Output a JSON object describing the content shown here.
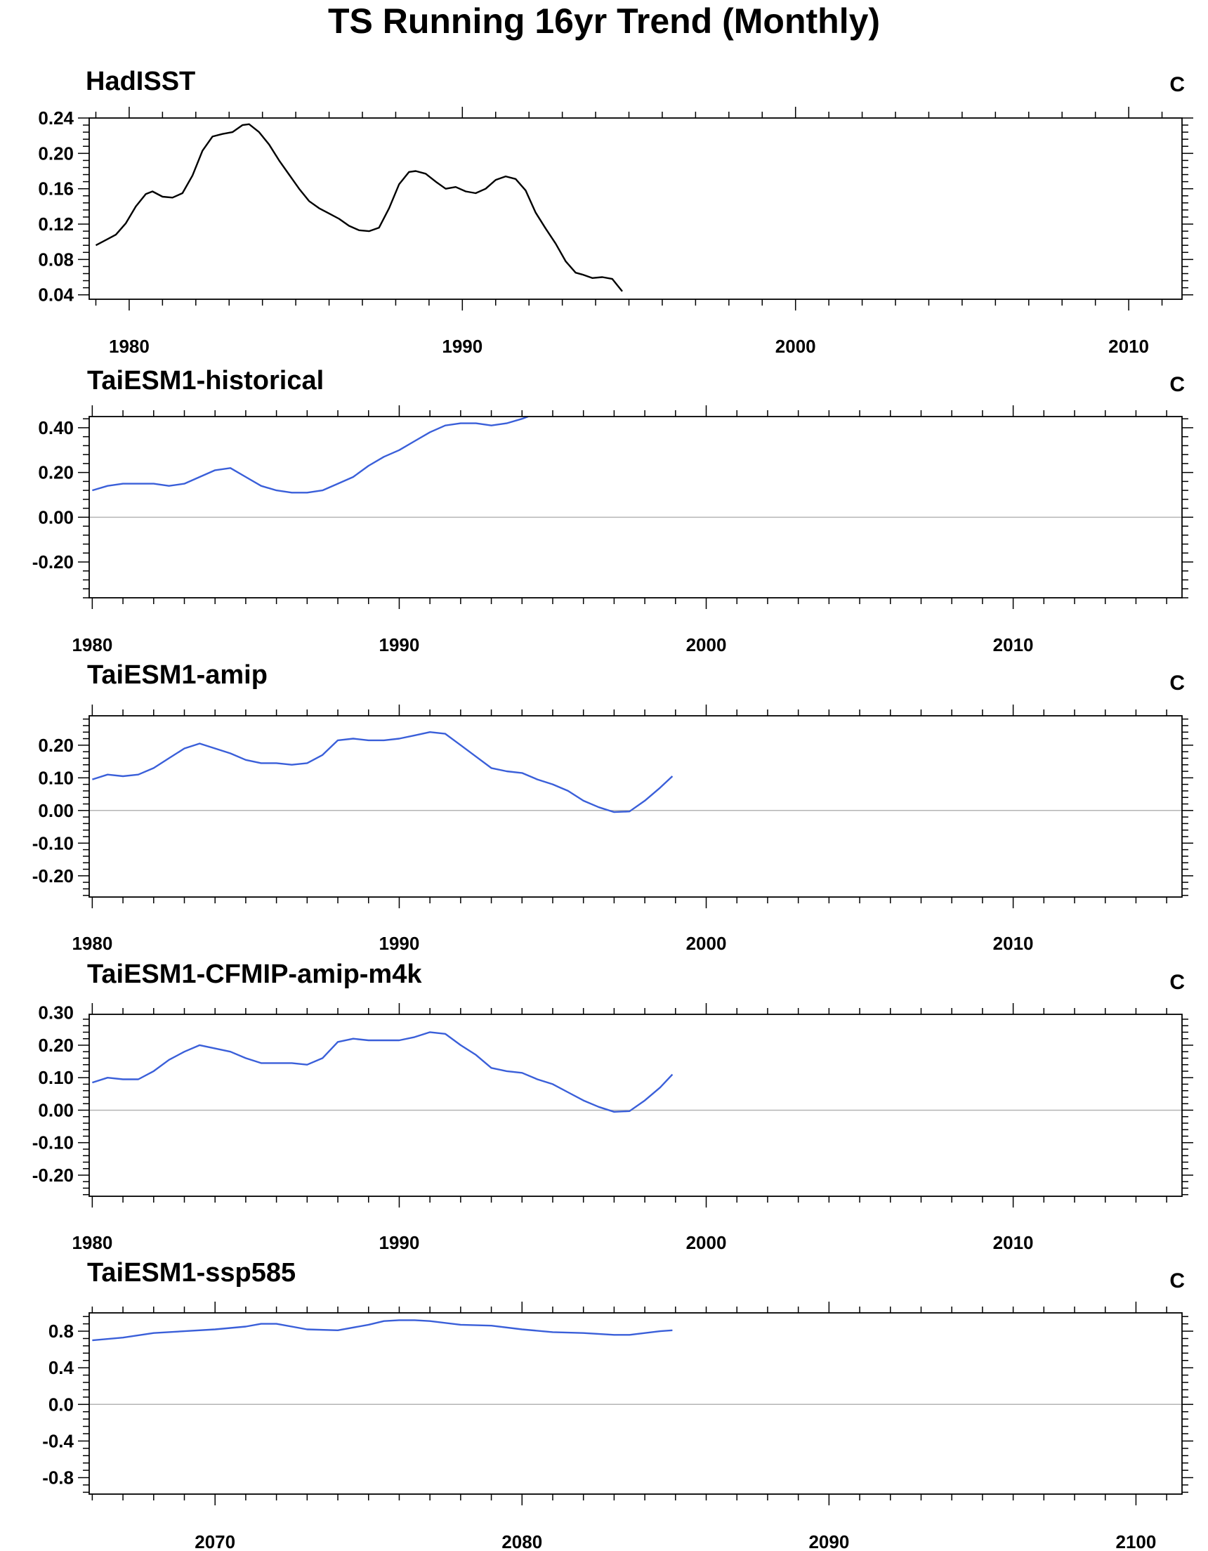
{
  "title": "TS Running 16yr Trend (Monthly)",
  "chart_data": [
    {
      "type": "line",
      "title": "HadISST",
      "units": "C",
      "xlim": [
        1978.8,
        2011.6
      ],
      "ylim": [
        0.035,
        0.24
      ],
      "xticks": [
        1980,
        1990,
        2000,
        2010
      ],
      "xtick_labels": [
        "1980",
        "1990",
        "2000",
        "2010"
      ],
      "yticks": [
        0.04,
        0.08,
        0.12,
        0.16,
        0.2,
        0.24
      ],
      "ytick_labels": [
        "0.04",
        "0.08",
        "0.12",
        "0.16",
        "0.20",
        "0.24"
      ],
      "zero_line": false,
      "series": [
        {
          "color": "#000000",
          "x": [
            1979.0,
            1979.3,
            1979.6,
            1979.9,
            1980.2,
            1980.5,
            1980.7,
            1981.0,
            1981.3,
            1981.6,
            1981.9,
            1982.2,
            1982.5,
            1982.8,
            1983.1,
            1983.4,
            1983.6,
            1983.9,
            1984.2,
            1984.5,
            1984.8,
            1985.1,
            1985.4,
            1985.7,
            1986.0,
            1986.3,
            1986.6,
            1986.9,
            1987.2,
            1987.5,
            1987.8,
            1988.1,
            1988.4,
            1988.6,
            1988.9,
            1989.2,
            1989.5,
            1989.8,
            1990.1,
            1990.4,
            1990.7,
            1991.0,
            1991.3,
            1991.6,
            1991.9,
            1992.2,
            1992.5,
            1992.8,
            1993.1,
            1993.4,
            1993.6,
            1993.9,
            1994.2,
            1994.5,
            1994.8
          ],
          "y": [
            0.096,
            0.102,
            0.108,
            0.121,
            0.14,
            0.154,
            0.157,
            0.151,
            0.15,
            0.155,
            0.175,
            0.203,
            0.219,
            0.222,
            0.224,
            0.232,
            0.233,
            0.224,
            0.21,
            0.192,
            0.176,
            0.16,
            0.146,
            0.138,
            0.132,
            0.126,
            0.118,
            0.113,
            0.112,
            0.116,
            0.138,
            0.165,
            0.179,
            0.18,
            0.177,
            0.168,
            0.16,
            0.162,
            0.157,
            0.155,
            0.16,
            0.17,
            0.174,
            0.171,
            0.158,
            0.133,
            0.115,
            0.098,
            0.078,
            0.065,
            0.063,
            0.059,
            0.06,
            0.058,
            0.044
          ]
        }
      ]
    },
    {
      "type": "line",
      "title": "TaiESM1-historical",
      "units": "C",
      "xlim": [
        1979.9,
        2015.5
      ],
      "ylim": [
        -0.36,
        0.45
      ],
      "xticks": [
        1980,
        1990,
        2000,
        2010
      ],
      "xtick_labels": [
        "1980",
        "1990",
        "2000",
        "2010"
      ],
      "yticks": [
        -0.2,
        0.0,
        0.2,
        0.4
      ],
      "ytick_labels": [
        "-0.20",
        "0.00",
        "0.20",
        "0.40"
      ],
      "zero_line": true,
      "series": [
        {
          "color": "#3a5fd9",
          "x": [
            1980.0,
            1980.5,
            1981.0,
            1981.5,
            1982.0,
            1982.5,
            1983.0,
            1983.5,
            1984.0,
            1984.5,
            1985.0,
            1985.5,
            1986.0,
            1986.5,
            1987.0,
            1987.5,
            1988.0,
            1988.5,
            1989.0,
            1989.5,
            1990.0,
            1990.5,
            1991.0,
            1991.5,
            1992.0,
            1992.5,
            1993.0,
            1993.5,
            1994.0,
            1994.2
          ],
          "y": [
            0.12,
            0.14,
            0.15,
            0.15,
            0.15,
            0.14,
            0.15,
            0.18,
            0.21,
            0.22,
            0.18,
            0.14,
            0.12,
            0.11,
            0.11,
            0.12,
            0.15,
            0.18,
            0.23,
            0.27,
            0.3,
            0.34,
            0.38,
            0.41,
            0.42,
            0.42,
            0.41,
            0.42,
            0.44,
            0.45
          ]
        }
      ]
    },
    {
      "type": "line",
      "title": "TaiESM1-amip",
      "units": "C",
      "xlim": [
        1979.9,
        2015.5
      ],
      "ylim": [
        -0.265,
        0.29
      ],
      "xticks": [
        1980,
        1990,
        2000,
        2010
      ],
      "xtick_labels": [
        "1980",
        "1990",
        "2000",
        "2010"
      ],
      "yticks": [
        -0.2,
        -0.1,
        0.0,
        0.1,
        0.2
      ],
      "ytick_labels": [
        "-0.20",
        "-0.10",
        "0.00",
        "0.10",
        "0.20"
      ],
      "zero_line": true,
      "series": [
        {
          "color": "#3a5fd9",
          "x": [
            1980.0,
            1980.5,
            1981.0,
            1981.5,
            1982.0,
            1982.5,
            1983.0,
            1983.5,
            1984.0,
            1984.5,
            1985.0,
            1985.5,
            1986.0,
            1986.5,
            1987.0,
            1987.5,
            1988.0,
            1988.5,
            1989.0,
            1989.5,
            1990.0,
            1990.5,
            1991.0,
            1991.5,
            1992.0,
            1992.5,
            1993.0,
            1993.5,
            1994.0,
            1994.5,
            1995.0,
            1995.5,
            1996.0,
            1996.5,
            1997.0,
            1997.5,
            1998.0,
            1998.5,
            1998.9
          ],
          "y": [
            0.095,
            0.11,
            0.105,
            0.11,
            0.13,
            0.16,
            0.19,
            0.205,
            0.19,
            0.175,
            0.155,
            0.145,
            0.145,
            0.14,
            0.145,
            0.17,
            0.215,
            0.22,
            0.215,
            0.215,
            0.22,
            0.23,
            0.24,
            0.235,
            0.2,
            0.165,
            0.13,
            0.12,
            0.115,
            0.095,
            0.08,
            0.06,
            0.03,
            0.01,
            -0.005,
            -0.003,
            0.03,
            0.07,
            0.105
          ]
        }
      ]
    },
    {
      "type": "line",
      "title": "TaiESM1-CFMIP-amip-m4k",
      "units": "C",
      "xlim": [
        1979.9,
        2015.5
      ],
      "ylim": [
        -0.265,
        0.295
      ],
      "xticks": [
        1980,
        1990,
        2000,
        2010
      ],
      "xtick_labels": [
        "1980",
        "1990",
        "2000",
        "2010"
      ],
      "yticks": [
        -0.2,
        -0.1,
        0.0,
        0.1,
        0.2,
        0.3
      ],
      "ytick_labels": [
        "-0.20",
        "-0.10",
        "0.00",
        "0.10",
        "0.20",
        "0.30"
      ],
      "zero_line": true,
      "series": [
        {
          "color": "#3a5fd9",
          "x": [
            1980.0,
            1980.5,
            1981.0,
            1981.5,
            1982.0,
            1982.5,
            1983.0,
            1983.5,
            1984.0,
            1984.5,
            1985.0,
            1985.5,
            1986.0,
            1986.5,
            1987.0,
            1987.5,
            1988.0,
            1988.5,
            1989.0,
            1989.5,
            1990.0,
            1990.5,
            1991.0,
            1991.5,
            1992.0,
            1992.5,
            1993.0,
            1993.5,
            1994.0,
            1994.5,
            1995.0,
            1995.5,
            1996.0,
            1996.5,
            1997.0,
            1997.5,
            1998.0,
            1998.5,
            1998.9
          ],
          "y": [
            0.085,
            0.1,
            0.095,
            0.095,
            0.12,
            0.155,
            0.18,
            0.2,
            0.19,
            0.18,
            0.16,
            0.145,
            0.145,
            0.145,
            0.14,
            0.16,
            0.21,
            0.22,
            0.215,
            0.215,
            0.215,
            0.225,
            0.24,
            0.235,
            0.2,
            0.17,
            0.13,
            0.12,
            0.115,
            0.095,
            0.08,
            0.055,
            0.03,
            0.01,
            -0.005,
            -0.003,
            0.03,
            0.07,
            0.11
          ]
        }
      ]
    },
    {
      "type": "line",
      "title": "TaiESM1-ssp585",
      "units": "C",
      "xlim": [
        2065.9,
        2101.5
      ],
      "ylim": [
        -0.98,
        1.0
      ],
      "xticks": [
        2070,
        2080,
        2090,
        2100
      ],
      "xtick_labels": [
        "2070",
        "2080",
        "2090",
        "2100"
      ],
      "yticks": [
        -0.8,
        -0.4,
        0.0,
        0.4,
        0.8
      ],
      "ytick_labels": [
        "-0.8",
        "-0.4",
        "0.0",
        "0.4",
        "0.8"
      ],
      "zero_line": true,
      "series": [
        {
          "color": "#3a5fd9",
          "x": [
            2066.0,
            2067.0,
            2068.0,
            2069.0,
            2070.0,
            2071.0,
            2071.5,
            2072.0,
            2073.0,
            2074.0,
            2075.0,
            2075.5,
            2076.0,
            2076.5,
            2077.0,
            2078.0,
            2079.0,
            2080.0,
            2081.0,
            2082.0,
            2083.0,
            2083.5,
            2084.0,
            2084.5,
            2084.9
          ],
          "y": [
            0.7,
            0.73,
            0.78,
            0.8,
            0.82,
            0.85,
            0.88,
            0.88,
            0.82,
            0.81,
            0.87,
            0.91,
            0.92,
            0.92,
            0.91,
            0.87,
            0.86,
            0.82,
            0.79,
            0.78,
            0.76,
            0.76,
            0.78,
            0.8,
            0.81
          ]
        }
      ]
    }
  ]
}
